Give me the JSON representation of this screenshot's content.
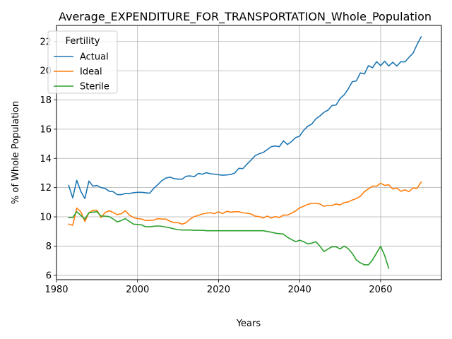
{
  "chart_data": {
    "type": "line",
    "title": "Average_EXPENDITURE_FOR_TRANSPORTATION_Whole_Population",
    "xlabel": "Years",
    "ylabel": "% of Whole Population",
    "xlim": [
      1980,
      2075
    ],
    "ylim": [
      5.7,
      23.1
    ],
    "xticks": [
      1980,
      2000,
      2020,
      2040,
      2060
    ],
    "yticks": [
      6,
      8,
      10,
      12,
      14,
      16,
      18,
      20,
      22
    ],
    "grid": true,
    "legend": {
      "title": "Fertility",
      "position": "top-left"
    },
    "series": [
      {
        "name": "Actual",
        "color": "#1f77b4",
        "points": [
          [
            1983,
            12.15
          ],
          [
            1984,
            11.3
          ],
          [
            1985,
            12.5
          ],
          [
            1986,
            11.75
          ],
          [
            1987,
            11.25
          ],
          [
            1988,
            12.45
          ],
          [
            1989,
            12.1
          ],
          [
            1990,
            12.15
          ],
          [
            1991,
            12.0
          ],
          [
            1992,
            11.95
          ],
          [
            1993,
            11.75
          ],
          [
            1994,
            11.72
          ],
          [
            1995,
            11.52
          ],
          [
            1996,
            11.52
          ],
          [
            1997,
            11.6
          ],
          [
            1998,
            11.6
          ],
          [
            1999,
            11.65
          ],
          [
            2000,
            11.68
          ],
          [
            2001,
            11.68
          ],
          [
            2002,
            11.65
          ],
          [
            2003,
            11.62
          ],
          [
            2004,
            11.95
          ],
          [
            2005,
            12.2
          ],
          [
            2006,
            12.48
          ],
          [
            2007,
            12.65
          ],
          [
            2008,
            12.72
          ],
          [
            2009,
            12.62
          ],
          [
            2010,
            12.58
          ],
          [
            2011,
            12.58
          ],
          [
            2012,
            12.78
          ],
          [
            2013,
            12.8
          ],
          [
            2014,
            12.75
          ],
          [
            2015,
            12.97
          ],
          [
            2016,
            12.92
          ],
          [
            2017,
            13.02
          ],
          [
            2018,
            12.95
          ],
          [
            2019,
            12.92
          ],
          [
            2020,
            12.88
          ],
          [
            2021,
            12.85
          ],
          [
            2022,
            12.87
          ],
          [
            2023,
            12.9
          ],
          [
            2024,
            13.0
          ],
          [
            2025,
            13.32
          ],
          [
            2026,
            13.3
          ],
          [
            2027,
            13.6
          ],
          [
            2028,
            13.88
          ],
          [
            2029,
            14.18
          ],
          [
            2030,
            14.32
          ],
          [
            2031,
            14.4
          ],
          [
            2032,
            14.6
          ],
          [
            2033,
            14.8
          ],
          [
            2034,
            14.85
          ],
          [
            2035,
            14.8
          ],
          [
            2036,
            15.2
          ],
          [
            2037,
            14.95
          ],
          [
            2038,
            15.15
          ],
          [
            2039,
            15.42
          ],
          [
            2040,
            15.52
          ],
          [
            2041,
            15.92
          ],
          [
            2042,
            16.2
          ],
          [
            2043,
            16.35
          ],
          [
            2044,
            16.7
          ],
          [
            2045,
            16.9
          ],
          [
            2046,
            17.15
          ],
          [
            2047,
            17.3
          ],
          [
            2048,
            17.62
          ],
          [
            2049,
            17.65
          ],
          [
            2050,
            18.1
          ],
          [
            2051,
            18.35
          ],
          [
            2052,
            18.75
          ],
          [
            2053,
            19.25
          ],
          [
            2054,
            19.3
          ],
          [
            2055,
            19.85
          ],
          [
            2056,
            19.78
          ],
          [
            2057,
            20.35
          ],
          [
            2058,
            20.2
          ],
          [
            2059,
            20.62
          ],
          [
            2060,
            20.35
          ],
          [
            2061,
            20.65
          ],
          [
            2062,
            20.32
          ],
          [
            2063,
            20.58
          ],
          [
            2064,
            20.32
          ],
          [
            2065,
            20.62
          ],
          [
            2066,
            20.6
          ],
          [
            2067,
            20.92
          ],
          [
            2068,
            21.2
          ],
          [
            2069,
            21.8
          ],
          [
            2070,
            22.32
          ]
        ]
      },
      {
        "name": "Ideal",
        "color": "#ff7f0e",
        "points": [
          [
            1983,
            9.5
          ],
          [
            1984,
            9.42
          ],
          [
            1985,
            10.6
          ],
          [
            1986,
            10.35
          ],
          [
            1987,
            9.68
          ],
          [
            1988,
            10.28
          ],
          [
            1989,
            10.45
          ],
          [
            1990,
            10.45
          ],
          [
            1991,
            9.95
          ],
          [
            1992,
            10.3
          ],
          [
            1993,
            10.42
          ],
          [
            1994,
            10.3
          ],
          [
            1995,
            10.15
          ],
          [
            1996,
            10.22
          ],
          [
            1997,
            10.42
          ],
          [
            1998,
            10.12
          ],
          [
            1999,
            9.95
          ],
          [
            2000,
            9.88
          ],
          [
            2001,
            9.85
          ],
          [
            2002,
            9.75
          ],
          [
            2003,
            9.75
          ],
          [
            2004,
            9.78
          ],
          [
            2005,
            9.88
          ],
          [
            2006,
            9.85
          ],
          [
            2007,
            9.85
          ],
          [
            2008,
            9.7
          ],
          [
            2009,
            9.6
          ],
          [
            2010,
            9.6
          ],
          [
            2011,
            9.5
          ],
          [
            2012,
            9.6
          ],
          [
            2013,
            9.85
          ],
          [
            2014,
            10.02
          ],
          [
            2015,
            10.1
          ],
          [
            2016,
            10.2
          ],
          [
            2017,
            10.25
          ],
          [
            2018,
            10.28
          ],
          [
            2019,
            10.22
          ],
          [
            2020,
            10.35
          ],
          [
            2021,
            10.22
          ],
          [
            2022,
            10.38
          ],
          [
            2023,
            10.32
          ],
          [
            2024,
            10.35
          ],
          [
            2025,
            10.35
          ],
          [
            2026,
            10.28
          ],
          [
            2027,
            10.25
          ],
          [
            2028,
            10.2
          ],
          [
            2029,
            10.05
          ],
          [
            2030,
            10.02
          ],
          [
            2031,
            9.92
          ],
          [
            2032,
            10.05
          ],
          [
            2033,
            9.92
          ],
          [
            2034,
            10.02
          ],
          [
            2035,
            9.95
          ],
          [
            2036,
            10.12
          ],
          [
            2037,
            10.12
          ],
          [
            2038,
            10.25
          ],
          [
            2039,
            10.4
          ],
          [
            2040,
            10.62
          ],
          [
            2041,
            10.72
          ],
          [
            2042,
            10.85
          ],
          [
            2043,
            10.92
          ],
          [
            2044,
            10.92
          ],
          [
            2045,
            10.88
          ],
          [
            2046,
            10.72
          ],
          [
            2047,
            10.78
          ],
          [
            2048,
            10.78
          ],
          [
            2049,
            10.88
          ],
          [
            2050,
            10.82
          ],
          [
            2051,
            10.98
          ],
          [
            2052,
            11.02
          ],
          [
            2053,
            11.15
          ],
          [
            2054,
            11.25
          ],
          [
            2055,
            11.42
          ],
          [
            2056,
            11.72
          ],
          [
            2057,
            11.92
          ],
          [
            2058,
            12.1
          ],
          [
            2059,
            12.1
          ],
          [
            2060,
            12.3
          ],
          [
            2061,
            12.15
          ],
          [
            2062,
            12.2
          ],
          [
            2063,
            11.9
          ],
          [
            2064,
            11.98
          ],
          [
            2065,
            11.75
          ],
          [
            2066,
            11.85
          ],
          [
            2067,
            11.72
          ],
          [
            2068,
            11.98
          ],
          [
            2069,
            11.95
          ],
          [
            2070,
            12.38
          ]
        ]
      },
      {
        "name": "Sterile",
        "color": "#2ca02c",
        "points": [
          [
            1983,
            9.95
          ],
          [
            1984,
            9.95
          ],
          [
            1985,
            10.35
          ],
          [
            1986,
            10.1
          ],
          [
            1987,
            9.85
          ],
          [
            1988,
            10.28
          ],
          [
            1989,
            10.32
          ],
          [
            1990,
            10.35
          ],
          [
            1991,
            10.05
          ],
          [
            1992,
            10.05
          ],
          [
            1993,
            10.02
          ],
          [
            1994,
            9.85
          ],
          [
            1995,
            9.65
          ],
          [
            1996,
            9.75
          ],
          [
            1997,
            9.88
          ],
          [
            1998,
            9.68
          ],
          [
            1999,
            9.5
          ],
          [
            2000,
            9.48
          ],
          [
            2001,
            9.45
          ],
          [
            2002,
            9.32
          ],
          [
            2003,
            9.32
          ],
          [
            2004,
            9.35
          ],
          [
            2005,
            9.38
          ],
          [
            2006,
            9.35
          ],
          [
            2007,
            9.3
          ],
          [
            2008,
            9.25
          ],
          [
            2009,
            9.18
          ],
          [
            2010,
            9.12
          ],
          [
            2011,
            9.1
          ],
          [
            2012,
            9.1
          ],
          [
            2013,
            9.1
          ],
          [
            2014,
            9.08
          ],
          [
            2015,
            9.08
          ],
          [
            2016,
            9.08
          ],
          [
            2017,
            9.05
          ],
          [
            2018,
            9.05
          ],
          [
            2020,
            9.05
          ],
          [
            2025,
            9.05
          ],
          [
            2030,
            9.05
          ],
          [
            2031,
            9.05
          ],
          [
            2032,
            9.0
          ],
          [
            2033,
            8.95
          ],
          [
            2034,
            8.88
          ],
          [
            2035,
            8.85
          ],
          [
            2036,
            8.82
          ],
          [
            2037,
            8.6
          ],
          [
            2038,
            8.45
          ],
          [
            2039,
            8.3
          ],
          [
            2040,
            8.4
          ],
          [
            2041,
            8.3
          ],
          [
            2042,
            8.15
          ],
          [
            2043,
            8.2
          ],
          [
            2044,
            8.3
          ],
          [
            2045,
            8.0
          ],
          [
            2046,
            7.62
          ],
          [
            2047,
            7.8
          ],
          [
            2048,
            7.95
          ],
          [
            2049,
            7.95
          ],
          [
            2050,
            7.8
          ],
          [
            2051,
            8.0
          ],
          [
            2052,
            7.82
          ],
          [
            2053,
            7.5
          ],
          [
            2054,
            7.05
          ],
          [
            2055,
            6.85
          ],
          [
            2056,
            6.72
          ],
          [
            2057,
            6.72
          ],
          [
            2058,
            7.05
          ],
          [
            2059,
            7.52
          ],
          [
            2060,
            7.98
          ],
          [
            2061,
            7.35
          ],
          [
            2062,
            6.48
          ]
        ]
      }
    ]
  }
}
